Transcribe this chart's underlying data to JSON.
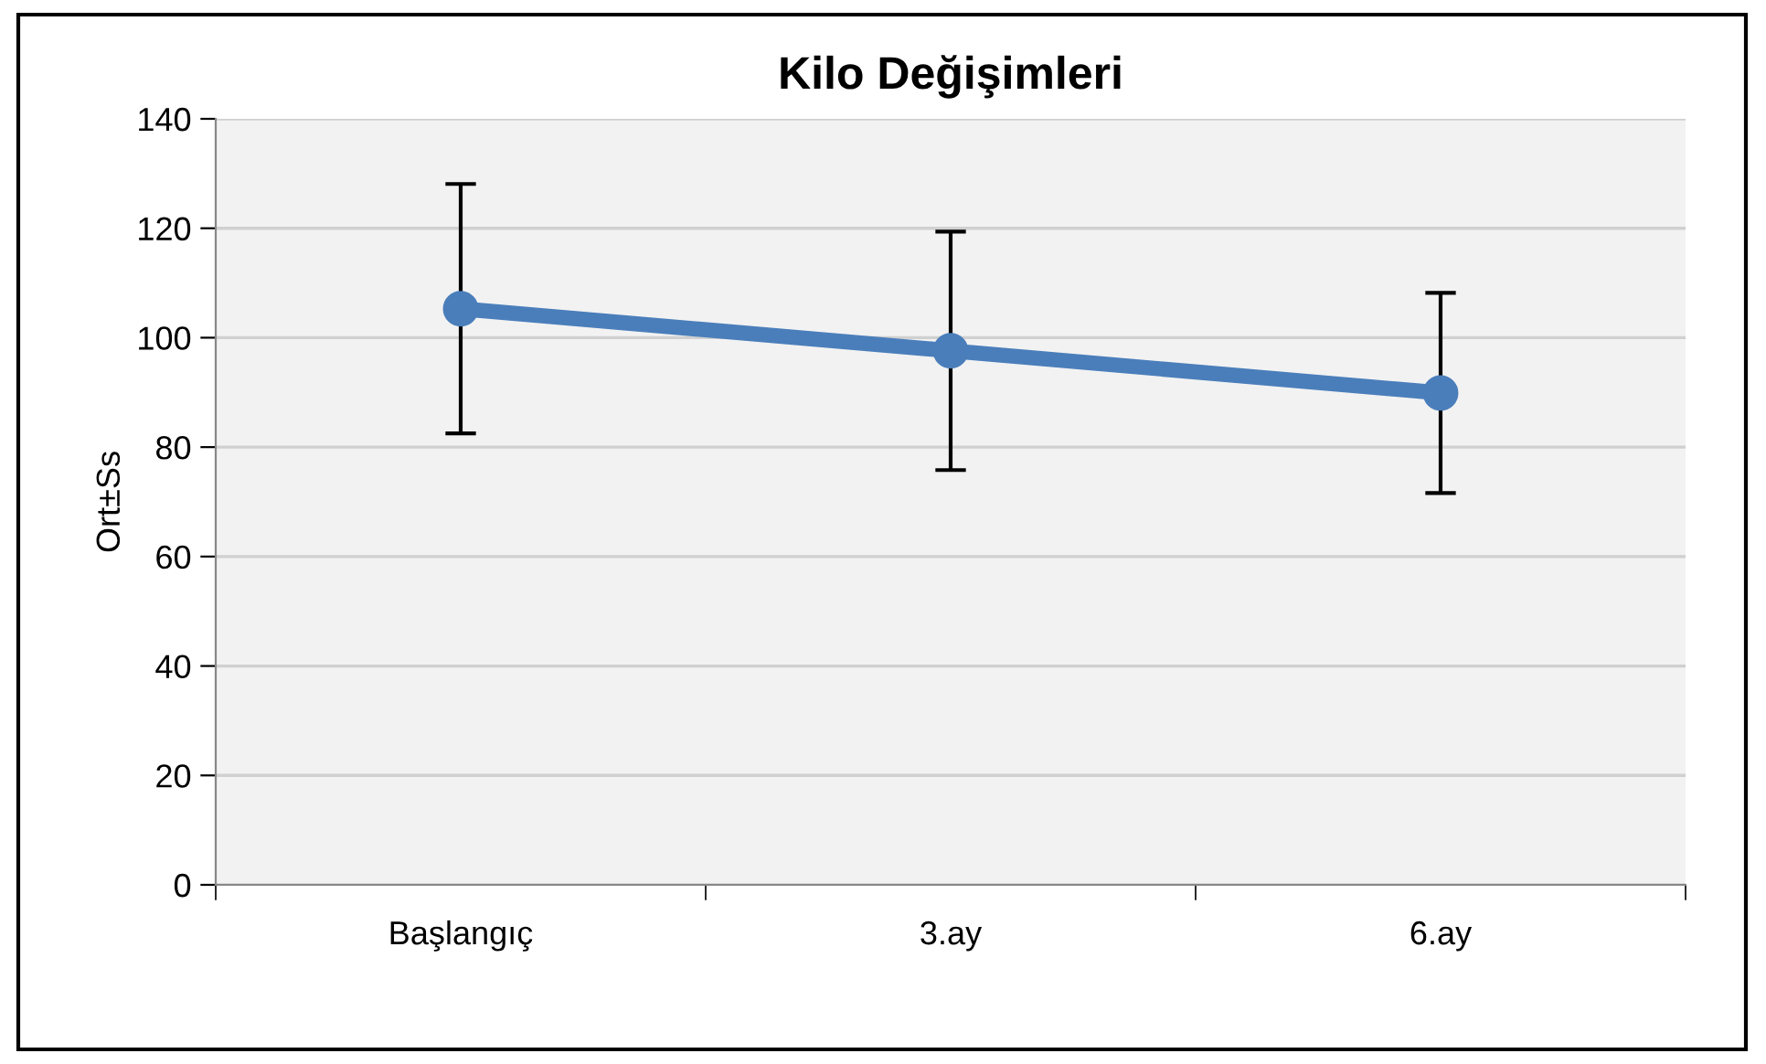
{
  "chart_data": {
    "type": "line",
    "title": "Kilo Değişimleri",
    "ylabel": "Ort±Ss",
    "categories": [
      "Başlangıç",
      "3.ay",
      "6.ay"
    ],
    "series": [
      {
        "color": "#4a7ebb",
        "values": [
          105.3,
          97.6,
          89.9
        ],
        "errors": [
          22.8,
          21.8,
          18.3
        ]
      }
    ],
    "ylim": [
      0,
      140
    ],
    "yticks": [
      0,
      20,
      40,
      60,
      80,
      100,
      120,
      140
    ],
    "grid": "y",
    "marker": "circle",
    "line_style": "solid",
    "legend": false
  }
}
